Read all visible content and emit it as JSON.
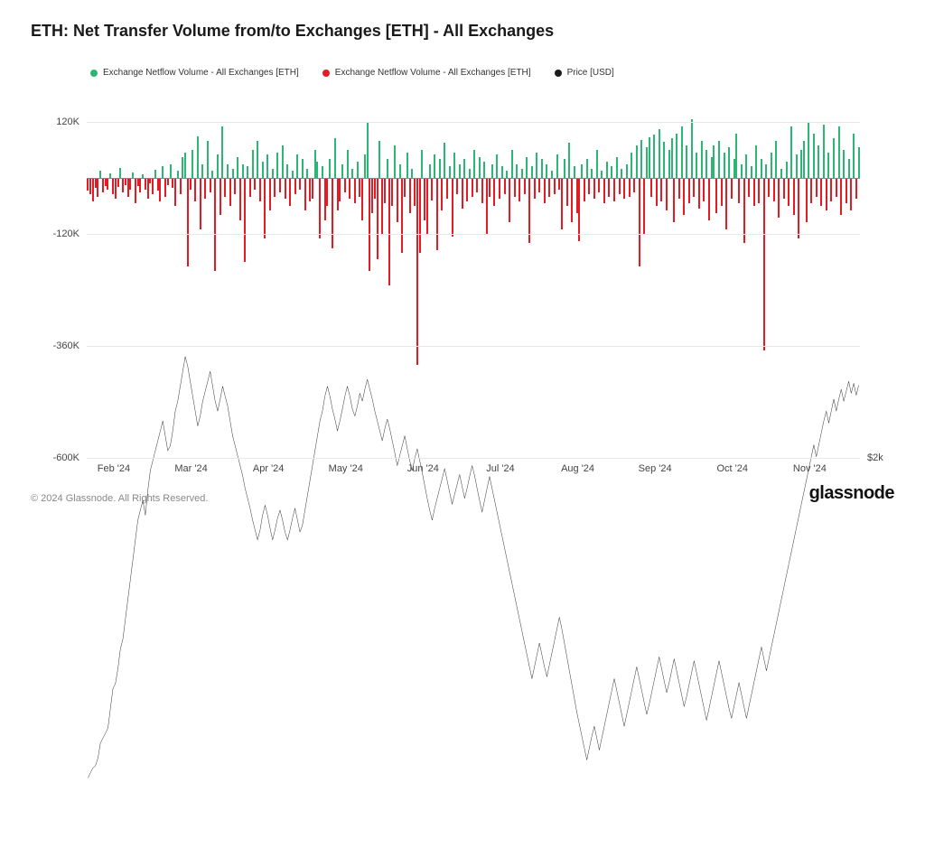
{
  "title": "ETH: Net Transfer Volume from/to Exchanges [ETH] - All Exchanges",
  "legend": [
    {
      "label": "Exchange Netflow Volume - All Exchanges [ETH]",
      "color": "#2bb673"
    },
    {
      "label": "Exchange Netflow Volume - All Exchanges [ETH]",
      "color": "#e31b23"
    },
    {
      "label": "Price [USD]",
      "color": "#1a1a1a"
    }
  ],
  "colors": {
    "positive": "#2bb673",
    "negative": "#e31b23",
    "price": "#1a1a1a",
    "grid": "#e8e8e8",
    "zero": "#888888",
    "background": "#ffffff"
  },
  "y_axis": {
    "min": -600000,
    "max": 180000,
    "ticks": [
      {
        "value": 120000,
        "label": "120K"
      },
      {
        "value": -120000,
        "label": "-120K"
      },
      {
        "value": -360000,
        "label": "-360K"
      },
      {
        "value": -600000,
        "label": "-600K"
      }
    ]
  },
  "y_right": {
    "label": "$2k",
    "at_value": -600000
  },
  "x_axis": {
    "labels": [
      "Feb '24",
      "Mar '24",
      "Apr '24",
      "May '24",
      "Jun '24",
      "Jul '24",
      "Aug '24",
      "Sep '24",
      "Oct '24",
      "Nov '24"
    ]
  },
  "netflow": [
    -28,
    -35,
    -50,
    -22,
    -40,
    15,
    -30,
    -18,
    -25,
    10,
    -35,
    -45,
    -20,
    22,
    -30,
    -15,
    -40,
    -25,
    12,
    -55,
    -18,
    -30,
    8,
    -25,
    -45,
    -12,
    -35,
    18,
    -28,
    -50,
    25,
    -40,
    -15,
    30,
    -22,
    -60,
    15,
    -35,
    45,
    55,
    -190,
    -25,
    60,
    -50,
    90,
    -110,
    30,
    -45,
    80,
    -30,
    15,
    -200,
    50,
    -80,
    110,
    -40,
    30,
    -60,
    20,
    -35,
    45,
    -90,
    30,
    -180,
    25,
    -40,
    60,
    -25,
    80,
    -50,
    35,
    -130,
    50,
    -70,
    20,
    -40,
    55,
    -30,
    70,
    -45,
    30,
    -60,
    15,
    -35,
    50,
    -25,
    40,
    -70,
    20,
    -50,
    -45,
    60,
    35,
    -130,
    25,
    -90,
    -60,
    40,
    -150,
    85,
    -70,
    -50,
    30,
    -30,
    60,
    -45,
    20,
    -55,
    35,
    -40,
    -90,
    50,
    120,
    -200,
    -75,
    -45,
    -175,
    80,
    -120,
    -55,
    40,
    -230,
    -60,
    70,
    -95,
    30,
    -160,
    -40,
    55,
    -75,
    20,
    -60,
    -400,
    -160,
    60,
    -90,
    -120,
    30,
    -48,
    50,
    -155,
    40,
    -70,
    75,
    -45,
    25,
    -125,
    55,
    -35,
    30,
    -65,
    40,
    -50,
    20,
    -40,
    60,
    -30,
    45,
    -55,
    35,
    -120,
    -40,
    30,
    -60,
    50,
    -45,
    25,
    -35,
    15,
    -95,
    60,
    -40,
    30,
    -50,
    20,
    -35,
    45,
    -140,
    25,
    -45,
    55,
    -30,
    40,
    -55,
    30,
    -40,
    15,
    -35,
    50,
    -25,
    -110,
    40,
    -60,
    75,
    -95,
    25,
    -75,
    -135,
    30,
    -50,
    40,
    -35,
    20,
    -45,
    60,
    -30,
    15,
    -55,
    35,
    -40,
    25,
    -50,
    45,
    -35,
    20,
    -45,
    30,
    -40,
    55,
    -30,
    70,
    -190,
    82,
    -120,
    65,
    88,
    -40,
    92,
    -60,
    105,
    -50,
    78,
    -70,
    60,
    85,
    -95,
    95,
    -45,
    110,
    -80,
    70,
    -55,
    125,
    -40,
    55,
    -65,
    80,
    -50,
    60,
    -90,
    45,
    70,
    -75,
    80,
    -60,
    55,
    -110,
    65,
    -45,
    40,
    95,
    -55,
    30,
    -140,
    50,
    -40,
    25,
    -60,
    70,
    -55,
    40,
    -370,
    30,
    -40,
    55,
    -50,
    80,
    -85,
    20,
    -45,
    35,
    -60,
    110,
    -80,
    50,
    -130,
    60,
    80,
    -95,
    120,
    -55,
    95,
    -40,
    70,
    -60,
    115,
    -70,
    55,
    -50,
    85,
    -40,
    110,
    -80,
    60,
    -55,
    40,
    -70,
    95,
    -45,
    65
  ],
  "price": [
    -510,
    -505,
    -500,
    -498,
    -490,
    -475,
    -470,
    -465,
    -460,
    -440,
    -420,
    -415,
    -400,
    -380,
    -370,
    -350,
    -330,
    -310,
    -290,
    -270,
    -250,
    -240,
    -230,
    -245,
    -220,
    -200,
    -190,
    -180,
    -170,
    -160,
    -150,
    -165,
    -180,
    -175,
    -160,
    -140,
    -130,
    -115,
    -100,
    -85,
    -95,
    -110,
    -125,
    -140,
    -155,
    -145,
    -130,
    -120,
    -110,
    -100,
    -115,
    -130,
    -140,
    -128,
    -115,
    -125,
    -135,
    -150,
    -165,
    -175,
    -185,
    -195,
    -205,
    -218,
    -228,
    -238,
    -250,
    -260,
    -270,
    -260,
    -245,
    -235,
    -245,
    -258,
    -270,
    -260,
    -248,
    -240,
    -250,
    -262,
    -270,
    -260,
    -248,
    -238,
    -250,
    -262,
    -255,
    -240,
    -225,
    -210,
    -195,
    -180,
    -165,
    -150,
    -140,
    -125,
    -115,
    -125,
    -138,
    -148,
    -160,
    -150,
    -138,
    -125,
    -115,
    -125,
    -138,
    -145,
    -135,
    -122,
    -130,
    -118,
    -108,
    -118,
    -128,
    -140,
    -150,
    -160,
    -170,
    -158,
    -148,
    -158,
    -170,
    -182,
    -195,
    -185,
    -175,
    -165,
    -178,
    -190,
    -200,
    -188,
    -178,
    -190,
    -202,
    -215,
    -228,
    -240,
    -250,
    -238,
    -228,
    -218,
    -208,
    -198,
    -210,
    -222,
    -234,
    -224,
    -214,
    -204,
    -216,
    -228,
    -218,
    -206,
    -195,
    -205,
    -218,
    -230,
    -242,
    -230,
    -218,
    -206,
    -218,
    -230,
    -242,
    -254,
    -266,
    -278,
    -290,
    -302,
    -314,
    -326,
    -338,
    -350,
    -362,
    -374,
    -386,
    -398,
    -410,
    -398,
    -386,
    -374,
    -386,
    -398,
    -408,
    -396,
    -384,
    -372,
    -360,
    -348,
    -360,
    -374,
    -388,
    -402,
    -416,
    -430,
    -444,
    -456,
    -468,
    -480,
    -492,
    -480,
    -468,
    -458,
    -470,
    -482,
    -470,
    -458,
    -446,
    -434,
    -422,
    -410,
    -422,
    -434,
    -446,
    -458,
    -446,
    -434,
    -422,
    -410,
    -398,
    -410,
    -422,
    -434,
    -446,
    -436,
    -424,
    -412,
    -400,
    -388,
    -400,
    -412,
    -424,
    -414,
    -402,
    -390,
    -402,
    -414,
    -426,
    -438,
    -428,
    -416,
    -404,
    -392,
    -404,
    -416,
    -428,
    -440,
    -452,
    -440,
    -428,
    -416,
    -404,
    -392,
    -404,
    -416,
    -428,
    -440,
    -450,
    -438,
    -426,
    -414,
    -426,
    -438,
    -450,
    -438,
    -426,
    -414,
    -402,
    -390,
    -378,
    -390,
    -402,
    -390,
    -378,
    -366,
    -354,
    -342,
    -330,
    -318,
    -306,
    -294,
    -282,
    -270,
    -258,
    -246,
    -234,
    -222,
    -210,
    -198,
    -186,
    -174,
    -186,
    -174,
    -162,
    -150,
    -140,
    -152,
    -140,
    -128,
    -140,
    -128,
    -118,
    -130,
    -120,
    -110,
    -122,
    -112,
    -124,
    -114
  ],
  "footer": {
    "copyright": "© 2024 Glassnode. All Rights Reserved.",
    "brand": "glassnode"
  }
}
